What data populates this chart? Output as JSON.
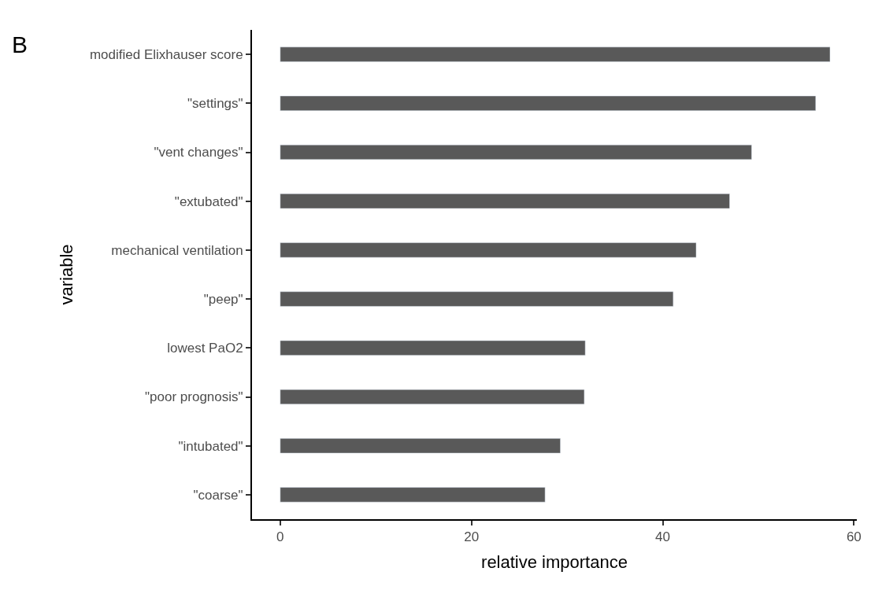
{
  "chart_data": {
    "type": "bar",
    "orientation": "horizontal",
    "xlabel": "relative importance",
    "ylabel": "variable",
    "annotations": [
      "B"
    ],
    "categories": [
      "modified Elixhauser score",
      "\"settings\"",
      "\"vent changes\"",
      "\"extubated\"",
      "mechanical ventilation",
      "\"peep\"",
      "lowest PaO2",
      "\"poor prognosis\"",
      "\"intubated\"",
      "\"coarse\""
    ],
    "values": [
      57.5,
      56.0,
      49.3,
      47.0,
      43.5,
      41.1,
      31.9,
      31.8,
      29.3,
      27.7
    ],
    "color": "#595959",
    "xlim": [
      -2.95,
      60.3
    ],
    "xticks": [
      0,
      20,
      40,
      60
    ]
  }
}
